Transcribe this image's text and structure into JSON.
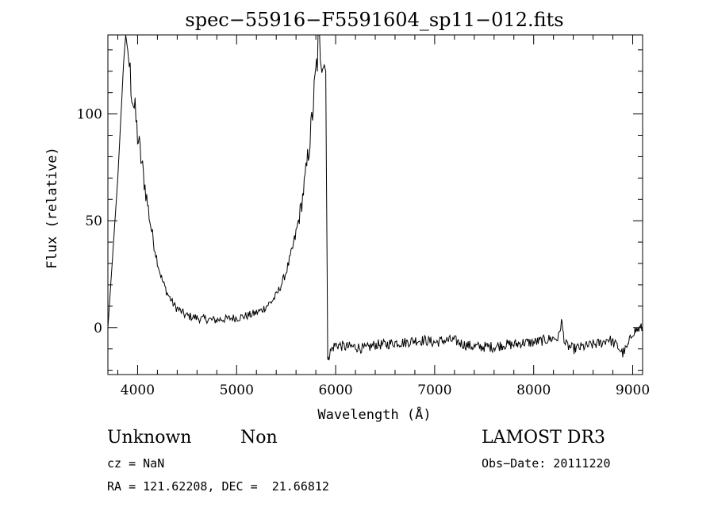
{
  "chart_data": {
    "type": "line",
    "title": "spec−55916−F5591604_sp11−012.fits",
    "xlabel": "Wavelength (Å)",
    "ylabel": "Flux (relative)",
    "xlim": [
      3700,
      9100
    ],
    "ylim": [
      -22,
      137
    ],
    "xticks": [
      4000,
      5000,
      6000,
      7000,
      8000,
      9000
    ],
    "yticks": [
      0,
      50,
      100
    ],
    "grid": false,
    "series": [
      {
        "points": [
          [
            3700,
            0
          ],
          [
            3800,
            70
          ],
          [
            3860,
            125
          ],
          [
            3880,
            137
          ],
          [
            3900,
            130
          ],
          [
            3925,
            118
          ],
          [
            3950,
            108
          ],
          [
            3975,
            100
          ],
          [
            4000,
            90
          ],
          [
            4025,
            82
          ],
          [
            4050,
            74
          ],
          [
            4075,
            66
          ],
          [
            4100,
            58
          ],
          [
            4125,
            50
          ],
          [
            4150,
            43
          ],
          [
            4175,
            37
          ],
          [
            4200,
            31
          ],
          [
            4225,
            26
          ],
          [
            4250,
            22
          ],
          [
            4275,
            19
          ],
          [
            4300,
            16
          ],
          [
            4325,
            14
          ],
          [
            4350,
            12
          ],
          [
            4375,
            10
          ],
          [
            4400,
            9
          ],
          [
            4425,
            8
          ],
          [
            4450,
            7
          ],
          [
            4475,
            6
          ],
          [
            4500,
            5.5
          ],
          [
            4550,
            5
          ],
          [
            4600,
            4.5
          ],
          [
            4650,
            4
          ],
          [
            4700,
            4
          ],
          [
            4750,
            3.5
          ],
          [
            4800,
            3.5
          ],
          [
            4850,
            4
          ],
          [
            4900,
            4
          ],
          [
            4950,
            4.5
          ],
          [
            5000,
            4.5
          ],
          [
            5050,
            5
          ],
          [
            5100,
            5.5
          ],
          [
            5150,
            6
          ],
          [
            5200,
            7
          ],
          [
            5250,
            8
          ],
          [
            5300,
            10
          ],
          [
            5350,
            12
          ],
          [
            5400,
            15
          ],
          [
            5450,
            20
          ],
          [
            5500,
            26
          ],
          [
            5550,
            34
          ],
          [
            5600,
            44
          ],
          [
            5650,
            56
          ],
          [
            5700,
            72
          ],
          [
            5750,
            92
          ],
          [
            5800,
            118
          ],
          [
            5830,
            134
          ],
          [
            5900,
            120
          ],
          [
            5920,
            -15
          ],
          [
            5940,
            -12
          ],
          [
            5960,
            -10
          ],
          [
            6000,
            -8
          ],
          [
            6100,
            -9
          ],
          [
            6200,
            -9
          ],
          [
            6300,
            -10
          ],
          [
            6400,
            -8
          ],
          [
            6500,
            -8
          ],
          [
            6600,
            -7
          ],
          [
            6700,
            -7
          ],
          [
            6800,
            -6
          ],
          [
            6900,
            -6
          ],
          [
            7000,
            -7
          ],
          [
            7100,
            -6
          ],
          [
            7200,
            -6
          ],
          [
            7300,
            -8
          ],
          [
            7400,
            -9
          ],
          [
            7500,
            -9
          ],
          [
            7600,
            -9
          ],
          [
            7700,
            -8
          ],
          [
            7800,
            -8
          ],
          [
            7900,
            -7
          ],
          [
            8000,
            -7
          ],
          [
            8100,
            -6
          ],
          [
            8200,
            -5
          ],
          [
            8250,
            -5
          ],
          [
            8280,
            3
          ],
          [
            8300,
            -3
          ],
          [
            8320,
            -8
          ],
          [
            8400,
            -10
          ],
          [
            8500,
            -9
          ],
          [
            8600,
            -8
          ],
          [
            8700,
            -7
          ],
          [
            8750,
            -5
          ],
          [
            8800,
            -7
          ],
          [
            8850,
            -9
          ],
          [
            8900,
            -12
          ],
          [
            8950,
            -9
          ],
          [
            9000,
            -2
          ],
          [
            9100,
            0
          ]
        ]
      }
    ]
  },
  "info": {
    "class_label": "Unknown",
    "subclass_label": "Non",
    "cz_text": "cz = NaN",
    "radec_text": "RA = 121.62208, DEC =  21.66812",
    "survey_text": "LAMOST DR3",
    "obsdate_text": "Obs−Date: 20111220"
  }
}
